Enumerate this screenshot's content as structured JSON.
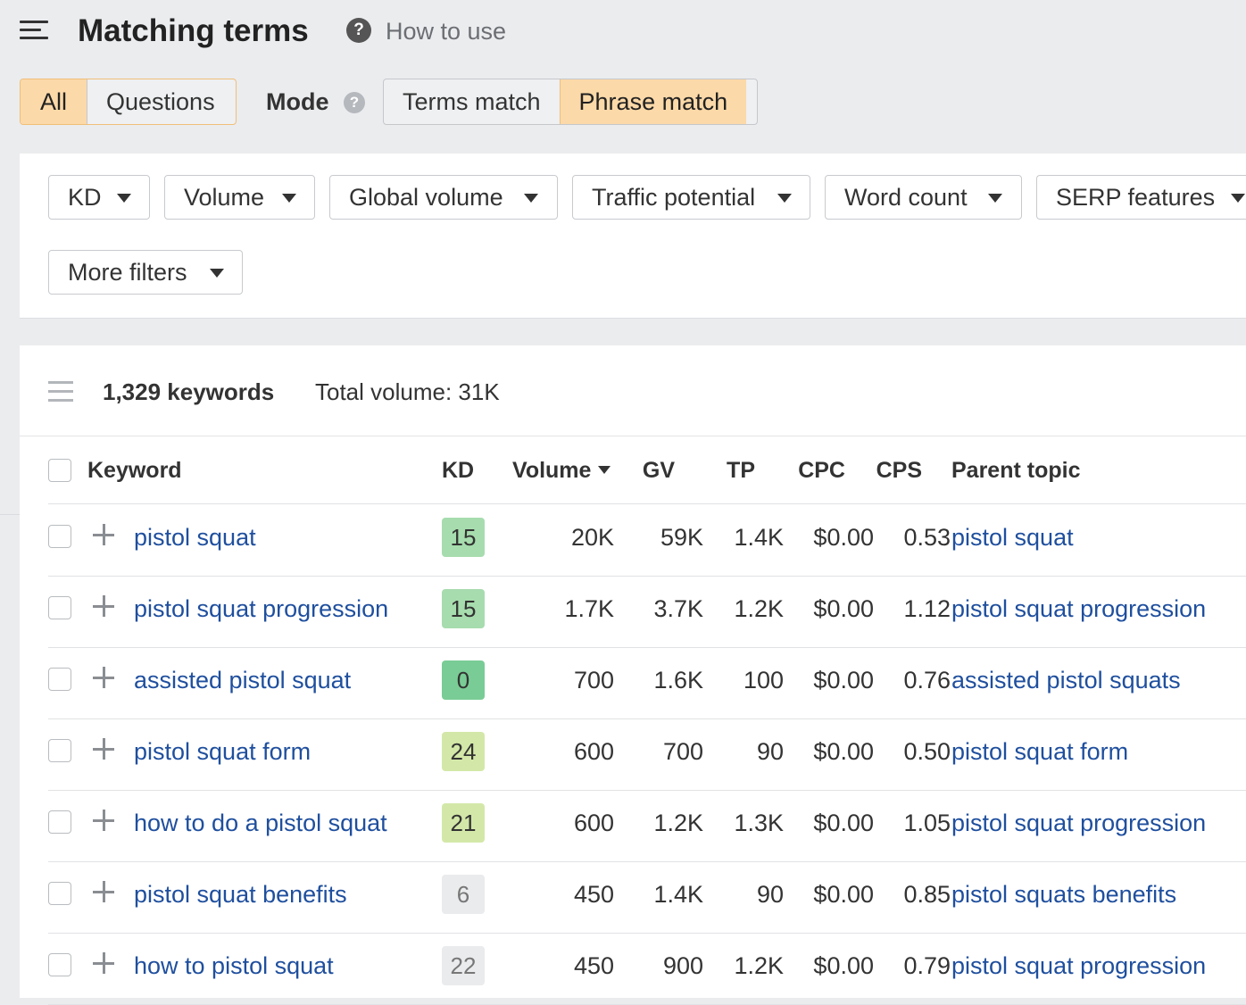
{
  "header": {
    "title": "Matching terms",
    "help_icon": "question-circle-icon",
    "how_to_use": "How to use"
  },
  "scope_tabs": [
    {
      "label": "All",
      "active": true
    },
    {
      "label": "Questions",
      "active": false
    }
  ],
  "mode": {
    "label": "Mode",
    "options": [
      {
        "label": "Terms match",
        "active": false
      },
      {
        "label": "Phrase match",
        "active": true
      }
    ]
  },
  "filters": [
    "KD",
    "Volume",
    "Global volume",
    "Traffic potential",
    "Word count",
    "SERP features",
    "More filters"
  ],
  "summary": {
    "keywords": "1,329 keywords",
    "total_volume": "Total volume: 31K"
  },
  "columns": {
    "keyword": "Keyword",
    "kd": "KD",
    "volume": "Volume",
    "gv": "GV",
    "tp": "TP",
    "cpc": "CPC",
    "cps": "CPS",
    "parent_topic": "Parent topic"
  },
  "rows": [
    {
      "keyword": "pistol squat",
      "kd": "15",
      "volume": "20K",
      "gv": "59K",
      "tp": "1.4K",
      "cpc": "$0.00",
      "cps": "0.53",
      "parent_topic": "pistol squat"
    },
    {
      "keyword": "pistol squat progression",
      "kd": "15",
      "volume": "1.7K",
      "gv": "3.7K",
      "tp": "1.2K",
      "cpc": "$0.00",
      "cps": "1.12",
      "parent_topic": "pistol squat progression"
    },
    {
      "keyword": "assisted pistol squat",
      "kd": "0",
      "volume": "700",
      "gv": "1.6K",
      "tp": "100",
      "cpc": "$0.00",
      "cps": "0.76",
      "parent_topic": "assisted pistol squats"
    },
    {
      "keyword": "pistol squat form",
      "kd": "24",
      "volume": "600",
      "gv": "700",
      "tp": "90",
      "cpc": "$0.00",
      "cps": "0.50",
      "parent_topic": "pistol squat form"
    },
    {
      "keyword": "how to do a pistol squat",
      "kd": "21",
      "volume": "600",
      "gv": "1.2K",
      "tp": "1.3K",
      "cpc": "$0.00",
      "cps": "1.05",
      "parent_topic": "pistol squat progression"
    },
    {
      "keyword": "pistol squat benefits",
      "kd": "6",
      "volume": "450",
      "gv": "1.4K",
      "tp": "90",
      "cpc": "$0.00",
      "cps": "0.85",
      "parent_topic": "pistol squats benefits"
    },
    {
      "keyword": "how to pistol squat",
      "kd": "22",
      "volume": "450",
      "gv": "900",
      "tp": "1.2K",
      "cpc": "$0.00",
      "cps": "0.79",
      "parent_topic": "pistol squat progression"
    }
  ],
  "kd_colors": {
    "very_easy": "#79cc95",
    "easy": "#a7dcae",
    "medium": "#d3e8a8",
    "neutral": "#eaebed"
  },
  "colors": {
    "accent_active": "#fcd9a8",
    "link": "#1f4f9e",
    "background": "#ebecee"
  }
}
